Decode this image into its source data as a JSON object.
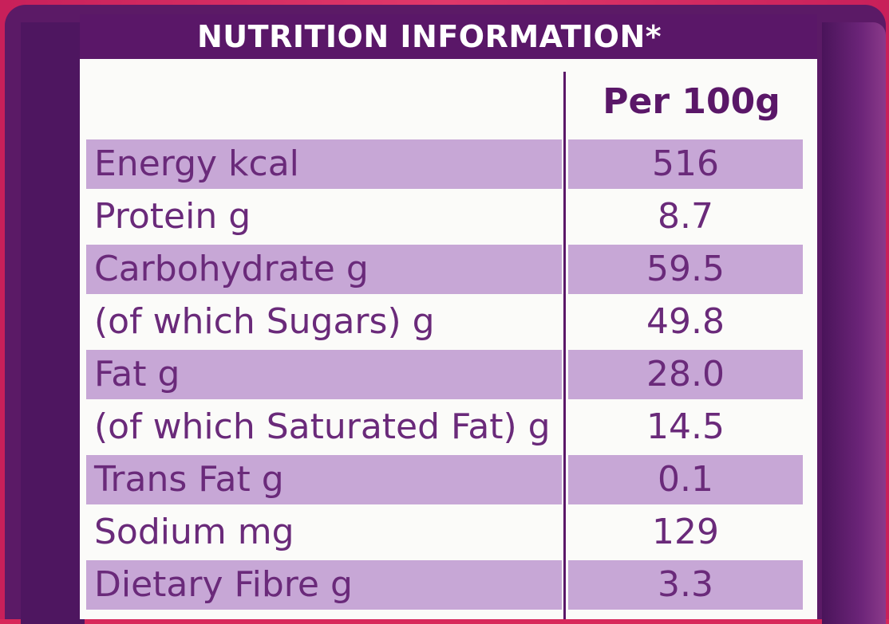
{
  "header": {
    "title": "NUTRITION INFORMATION*"
  },
  "columns": {
    "per": "Per 100g"
  },
  "rows": [
    {
      "name": "Energy kcal",
      "value": "516"
    },
    {
      "name": "Protein g",
      "value": "8.7"
    },
    {
      "name": "Carbohydrate g",
      "value": "59.5"
    },
    {
      "name": "(of which Sugars) g",
      "value": "49.8"
    },
    {
      "name": "Fat g",
      "value": "28.0"
    },
    {
      "name": "(of which Saturated Fat) g",
      "value": "14.5"
    },
    {
      "name": "Trans Fat g",
      "value": "0.1"
    },
    {
      "name": "Sodium mg",
      "value": "129"
    },
    {
      "name": "Dietary Fibre g",
      "value": "3.3"
    }
  ],
  "colors": {
    "header_bg": "#5a1768",
    "row_shade": "#c7a7d6",
    "text": "#6a2a7a",
    "packaging": "#d8285a"
  }
}
